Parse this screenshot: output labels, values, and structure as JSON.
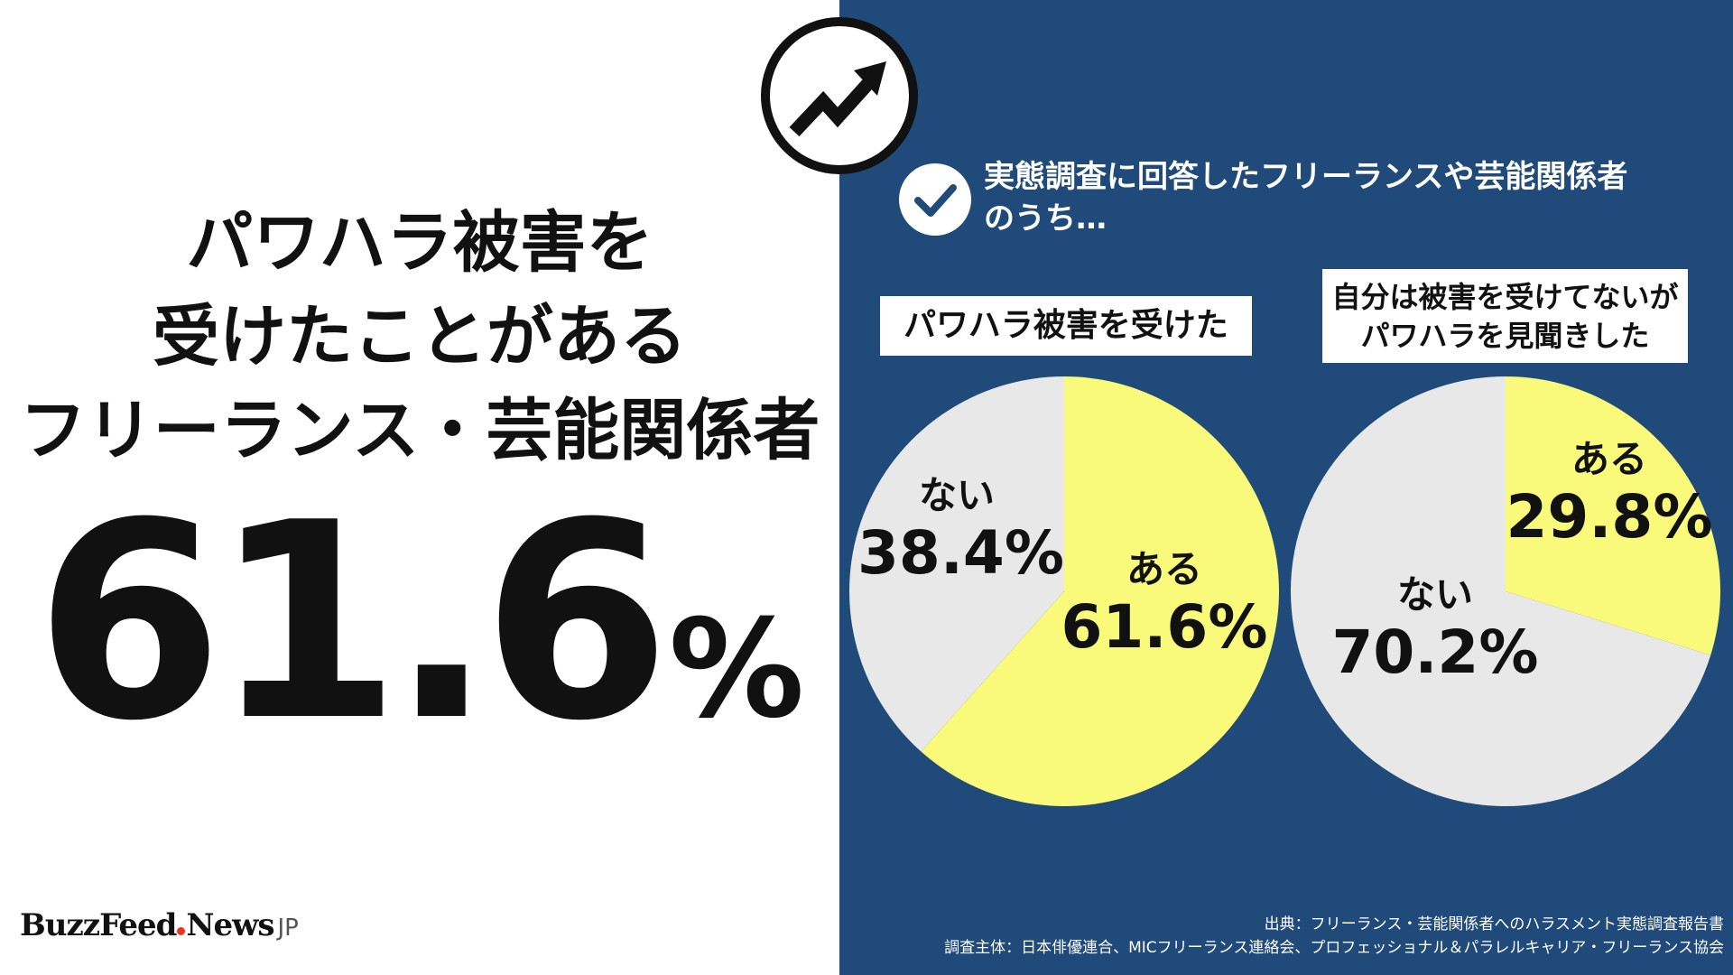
{
  "headline": {
    "line1": "パワハラ被害を",
    "line2": "受けたことがある",
    "line3": "フリーランス・芸能関係者",
    "number": "61.6",
    "percent_sign": "%"
  },
  "logo": {
    "main1": "BuzzFeed",
    "main2": "News",
    "suffix": "JP"
  },
  "intro": {
    "line1": "実態調査に回答したフリーランスや芸能関係者",
    "line2": "のうち…"
  },
  "colors": {
    "navy": "#1f4a7a",
    "yellow": "#f9f97a",
    "gray": "#e8e8e8"
  },
  "icons": {
    "badge": "trending-up-arrow-icon",
    "check": "check-circle-icon"
  },
  "chart_data": [
    {
      "type": "pie",
      "title": "パワハラ被害を受けた",
      "categories": [
        "ある",
        "ない"
      ],
      "values": [
        61.6,
        38.4
      ],
      "labels": [
        "61.6%",
        "38.4%"
      ],
      "colors": [
        "#f9f97a",
        "#e8e8e8"
      ]
    },
    {
      "type": "pie",
      "title_line1": "自分は被害を受けてないが",
      "title_line2": "パワハラを見聞きした",
      "categories": [
        "ある",
        "ない"
      ],
      "values": [
        29.8,
        70.2
      ],
      "labels": [
        "29.8%",
        "70.2%"
      ],
      "colors": [
        "#f9f97a",
        "#e8e8e8"
      ]
    }
  ],
  "source": {
    "line1": "出典：フリーランス・芸能関係者へのハラスメント実態調査報告書",
    "line2": "調査主体：日本俳優連合、MICフリーランス連絡会、プロフェッショナル＆パラレルキャリア・フリーランス協会"
  }
}
